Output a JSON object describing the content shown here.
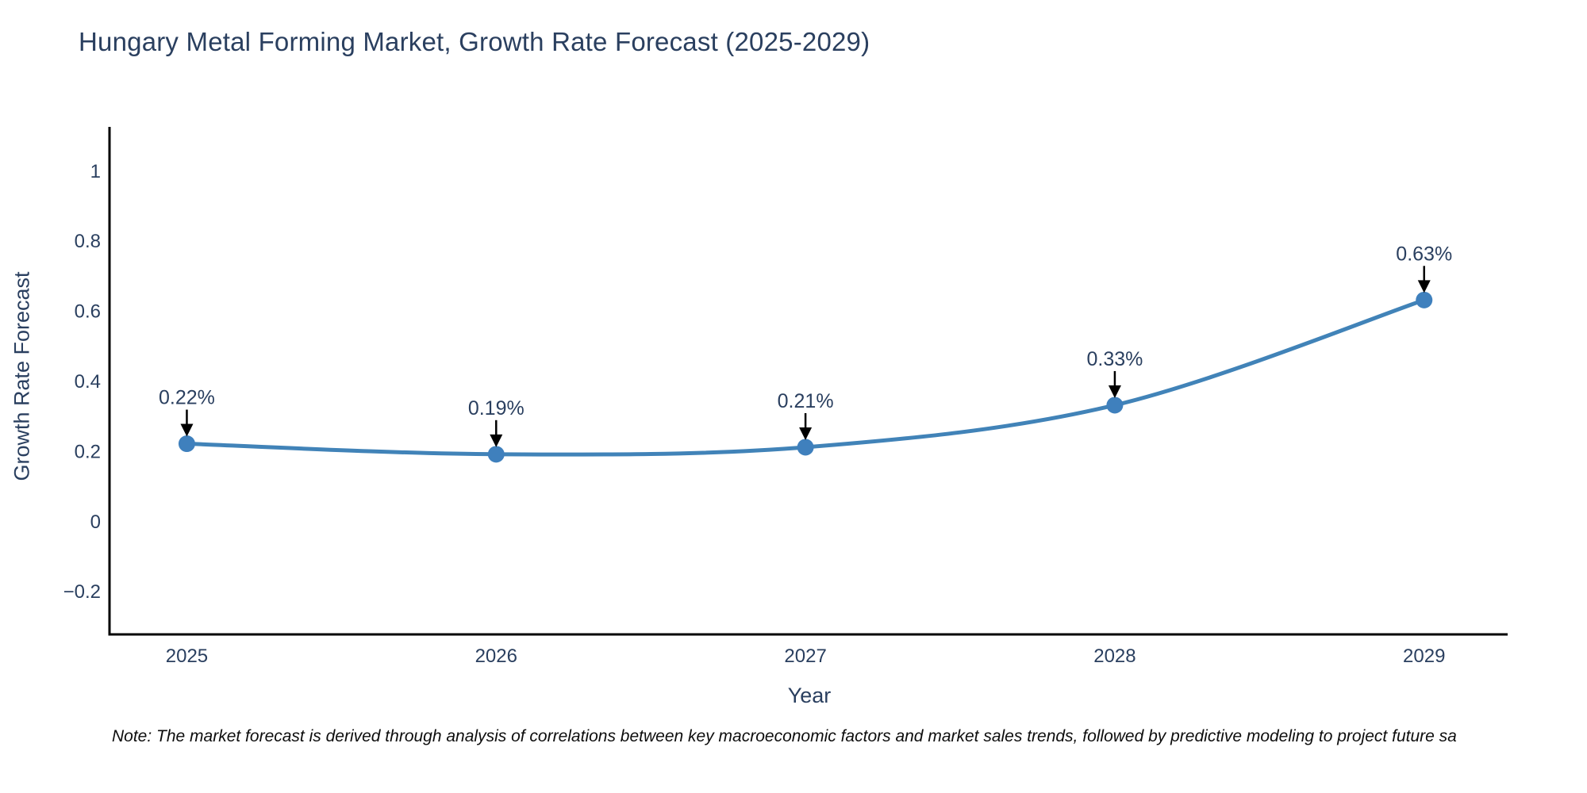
{
  "title": "Hungary Metal Forming Market, Growth Rate Forecast (2025-2029)",
  "footnote": "Note: The market forecast is derived through analysis of correlations between key macroeconomic factors and market sales trends, followed by predictive modeling to project future sa",
  "chart_data": {
    "type": "line",
    "title": "Hungary Metal Forming Market, Growth Rate Forecast (2025-2029)",
    "xlabel": "Year",
    "ylabel": "Growth Rate Forecast",
    "x": [
      2025,
      2026,
      2027,
      2028,
      2029
    ],
    "y": [
      0.22,
      0.19,
      0.21,
      0.33,
      0.63
    ],
    "point_labels": [
      "0.22%",
      "0.19%",
      "0.21%",
      "0.33%",
      "0.63%"
    ],
    "xtick_labels": [
      "2025",
      "2026",
      "2027",
      "2028",
      "2029"
    ],
    "yticks": [
      1,
      0.8,
      0.6,
      0.4,
      0.2,
      0,
      -0.2
    ],
    "ytick_labels": [
      "1",
      "0.8",
      "0.6",
      "0.4",
      "0.2",
      "0",
      "−0.2"
    ],
    "xlim": [
      2024.75,
      2029.27
    ],
    "ylim": [
      -0.324,
      1.124
    ],
    "grid": false,
    "legend": "none",
    "line_shape": "spline",
    "colors": {
      "line": "#4183b8",
      "marker": "#3f80bd",
      "axis": "#000000",
      "text": "#2a3f5f",
      "arrow": "#000000"
    }
  }
}
